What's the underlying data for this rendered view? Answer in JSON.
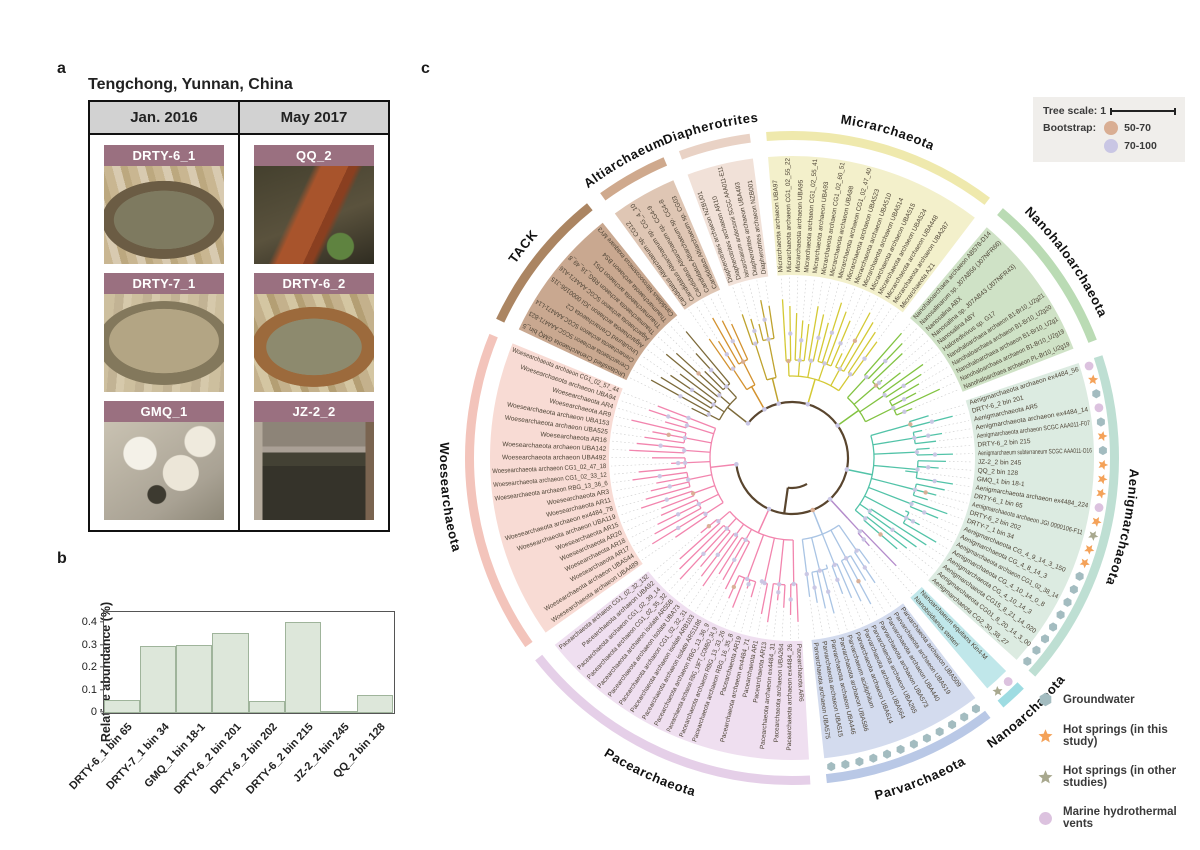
{
  "panel_a": {
    "label": "a",
    "title": "Tengchong, Yunnan, China",
    "columns": [
      "Jan. 2016",
      "May 2017"
    ],
    "banner_color": "#9a7080",
    "cells": [
      {
        "name": "DRTY-6_1",
        "photo": "p-drty61",
        "col": 0
      },
      {
        "name": "DRTY-7_1",
        "photo": "p-drty71",
        "col": 0
      },
      {
        "name": "GMQ_1",
        "photo": "p-gmq1",
        "col": 0
      },
      {
        "name": "QQ_2",
        "photo": "p-qq2",
        "col": 1
      },
      {
        "name": "DRTY-6_2",
        "photo": "p-drty62",
        "col": 1
      },
      {
        "name": "JZ-2_2",
        "photo": "p-jz22",
        "col": 1
      }
    ]
  },
  "panel_b": {
    "label": "b"
  },
  "chart_data": {
    "type": "bar",
    "title": "",
    "xlabel": "",
    "ylabel": "Relative abundance (%)",
    "categories": [
      "DRTY-6_1 bin 65",
      "DRTY-7_1 bin 34",
      "GMQ_1 bin 18-1",
      "DRTY-6_2 bin 201",
      "DRTY-6_2 bin 202",
      "DRTY-6_2 bin 215",
      "JZ-2_2 bin 245",
      "QQ_2 bin 128"
    ],
    "values": [
      0.06,
      0.297,
      0.302,
      0.355,
      0.053,
      0.403,
      0.006,
      0.082
    ],
    "yticks": [
      0,
      0.1,
      0.2,
      0.3,
      0.4
    ],
    "ylim": [
      0,
      0.45
    ],
    "grid": false,
    "legend_position": "none",
    "bar_fill": "#dde7da",
    "bar_border": "#9fb49b"
  },
  "panel_c": {
    "label": "c",
    "scale_legend": {
      "scale_label": "Tree scale: 1",
      "bootstrap_label": "Bootstrap:",
      "items": [
        {
          "label": "50-70",
          "color": "#d9ae93"
        },
        {
          "label": "70-100",
          "color": "#c9c6e4"
        }
      ]
    },
    "site_legend": [
      {
        "label": "Groundwater",
        "shape": "hex",
        "color": "#a3bcc0"
      },
      {
        "label": "Hot springs (in this study)",
        "shape": "star",
        "color": "#f4a259"
      },
      {
        "label": "Hot springs (in other studies)",
        "shape": "star",
        "color": "#a8a88e"
      },
      {
        "label": "Marine hydrothermal vents",
        "shape": "circle",
        "color": "#dcc2df"
      }
    ],
    "marker_colors": {
      "hex": "#a3bcc0",
      "star": "#f4a259",
      "graystar": "#a8a88e",
      "circle": "#dcc2df"
    },
    "bootstrap_dot_colors": {
      "low": "#d9ae93",
      "high": "#c9c6e4"
    },
    "tree": {
      "backbone_color": "#59452e",
      "clades": [
        {
          "name": "TACK",
          "band": "#c9a890",
          "arc": "#ab8562",
          "branch": "#7c6a3a",
          "leaves": [
            {
              "n": "Unclassified Crenarchaeota GMQ bin_5"
            },
            {
              "n": "Crenarchaeota archaeon SCGC AAA471-B23"
            },
            {
              "n": "Crenarchaeota archaeon SCGC AAA471-L14"
            },
            {
              "n": "Uncultured Crenarchaeota C2"
            },
            {
              "n": "Aigarchaeota archaeon JGI 0000106-J15"
            },
            {
              "n": "Aigarchaeota archaeon SCGC AAA471-A16"
            },
            {
              "n": "Thaumarchaeota archaeon RBG_16_49_8"
            },
            {
              "n": "Thaumarchaeota archaeon DS1"
            },
            {
              "n": "Thaumarchaeota archaeon BS4"
            },
            {
              "n": "Candidatus Nitrosocosmicus exaquare MY3"
            }
          ]
        },
        {
          "name": "Altiarchaeum",
          "band": "#dfc6b4",
          "arc": "#cfa98d",
          "branch": "#d3922f",
          "leaves": [
            {
              "n": "Candidatus Altiarchaeum sp. CG12"
            },
            {
              "n": "Candidatus Altiarchaeum sp. CG_4_10"
            },
            {
              "n": "Candidatus Altiarchaeum sp. CG4-9"
            },
            {
              "n": "Candidatus Altiarchaeum sp. CG4-8"
            },
            {
              "n": "Candidatus Altiarchaeum sp. CG03"
            }
          ]
        },
        {
          "name": "Diapherotrites",
          "band": "#f1e1d8",
          "arc": "#e9d2c5",
          "branch": "#bfa32e",
          "leaves": [
            {
              "n": "Diapherotrites archaeon NZBU01"
            },
            {
              "n": "Diapherotrites archaeon AR10"
            },
            {
              "n": "Iainarchaeum andersonii SCGC AAA011-E11"
            },
            {
              "n": "Diapherotrites archaeon UBA493"
            },
            {
              "n": "Diapherotrites archaeon NZB001"
            }
          ]
        },
        {
          "name": "Micrarchaeota",
          "band": "#f3f0cb",
          "arc": "#efe9ad",
          "branch": "#d4c934",
          "leaves": [
            {
              "n": "Micrarchaeota archaeon UBA97"
            },
            {
              "n": "Micrarchaeota archaeon CG1_02_55_22"
            },
            {
              "n": "Micrarchaeota archaeon UBA95"
            },
            {
              "n": "Micrarchaeota archaeon CG1_02_55_41"
            },
            {
              "n": "Micrarchaeota archaeon UBA93"
            },
            {
              "n": "Micrarchaeota archaeon CG1_02_60_51"
            },
            {
              "n": "Micrarchaeota archaeon UBA98"
            },
            {
              "n": "Micrarchaeota archaeon CG1_02_47_40"
            },
            {
              "n": "Micrarchaeota archaeon UBA523"
            },
            {
              "n": "Micrarchaeota archaeon UBA510"
            },
            {
              "n": "Micrarchaeota archaeon UBA514"
            },
            {
              "n": "Micrarchaeota archaeon UBA515"
            },
            {
              "n": "Micrarchaeota archaeon UBA524"
            },
            {
              "n": "Micrarchaeota archaeon UBA448"
            },
            {
              "n": "Micrarchaeota archaeon UBA287"
            },
            {
              "n": "Micrarchaeota AZ1"
            }
          ]
        },
        {
          "name": "Nanohaloarchaeota",
          "band": "#cfe2c6",
          "arc": "#badbb4",
          "branch": "#82c341",
          "leaves": [
            {
              "n": "Nanohaloarchaea archaeon AB578-D14"
            },
            {
              "n": "Nanosalinarum sp. J07AB56 (J07NFR66)"
            },
            {
              "n": "Nanosalina ABX"
            },
            {
              "n": "Nanosalina sp. J07AB43 (J07NFR43)"
            },
            {
              "n": "Nanosalina ABY"
            },
            {
              "n": "Haloredivivus sp. G17"
            },
            {
              "n": "Nanohaloarchaea archaeon B1-Br10_U2g21"
            },
            {
              "n": "Nanohaloarchaea archaeon B1-Br10_U2g20"
            },
            {
              "n": "Nanohaloarchaea archaeon B1-Br10_U2g1"
            },
            {
              "n": "Nanohaloarchaea archaeon B1-Br10_U2g19"
            },
            {
              "n": "Nanohaloarchaea archaeon PL-Br10_U2g19"
            }
          ]
        },
        {
          "name": "Aenigmarchaeota",
          "band": "#dcebe1",
          "arc": "#bedfd3",
          "branch": "#52c3a8",
          "leaves": [
            {
              "n": "Aenigmarchaeota archaeon ex4484_56",
              "m": "circle"
            },
            {
              "n": "DRTY-6_2 bin 201",
              "m": "star"
            },
            {
              "n": "Aenigmarchaeota AR5",
              "m": "hex"
            },
            {
              "n": "Aenigmarchaeota archaeon ex4484_14",
              "m": "circle"
            },
            {
              "n": "Aenigmarchaeota archaeon SCGC AAA011-F07",
              "m": "hex"
            },
            {
              "n": "DRTY-6_2 bin 215",
              "m": "star"
            },
            {
              "n": "Aenigmarchaeum subterraneum SCGC AAA011-O16",
              "m": "hex"
            },
            {
              "n": "JZ-2_2 bin 245",
              "m": "star"
            },
            {
              "n": "QQ_2 bin 128",
              "m": "star"
            },
            {
              "n": "GMQ_1 bin 18-1",
              "m": "star"
            },
            {
              "n": "Aenigmarchaeota archaeon ex4484_224",
              "m": "circle"
            },
            {
              "n": "DRTY-6_1 bin 65",
              "m": "star"
            },
            {
              "n": "Aenigmarchaeota archaeon JGI 0000106-F11",
              "m": "graystar"
            },
            {
              "n": "DRTY-6_2 bin 202",
              "m": "star"
            },
            {
              "n": "DRTY-7_1 bin 34",
              "m": "star"
            },
            {
              "n": "Aenigmarchaeota CG_4_9_14_3_150",
              "m": "hex"
            },
            {
              "n": "Aenigmarchaeota CG_4_8_14_3",
              "m": "hex"
            },
            {
              "n": "Aenigmarchaeota archaeon CG1_02_38_14",
              "m": "hex"
            },
            {
              "n": "Aenigmarchaeota CG_4_10_14_0_8",
              "m": "hex"
            },
            {
              "n": "Aenigmarchaeota CG_4_10_14_3",
              "m": "hex"
            },
            {
              "n": "Aenigmarchaeota CG15_8_21_14_020",
              "m": "hex"
            },
            {
              "n": "Aenigmarchaeota CG01_8_20_14_3_00",
              "m": "hex"
            },
            {
              "n": "Aenigmarchaeota CG2_30_38_27",
              "m": "hex"
            }
          ]
        },
        {
          "name": "Nanoarchaeota",
          "band": "#c0e7ea",
          "arc": "#9edce2",
          "branch": "#b48ccb",
          "leaves": [
            {
              "n": "Nanoarchaeum equitans Kin4-M",
              "m": "circle"
            },
            {
              "n": "Nanobsidianus stetteri",
              "m": "graystar"
            }
          ]
        },
        {
          "name": "Parvarchaeota",
          "band": "#d3dbee",
          "arc": "#b9c8e6",
          "branch": "#a9c4e4",
          "leaves": [
            {
              "n": "Parvarchaeota archaeon UBA509",
              "m": "hex"
            },
            {
              "n": "Parvarchaeota archaeon UBA519",
              "m": "hex"
            },
            {
              "n": "Parvarchaeota archaeon UBA440",
              "m": "hex"
            },
            {
              "n": "Parvarchaeota archaeon UBA573",
              "m": "hex"
            },
            {
              "n": "Parvarchaeota archaeon UBA265",
              "m": "hex"
            },
            {
              "n": "Parvarchaeota archaeon UBA564",
              "m": "hex"
            },
            {
              "n": "Parvarchaeota archaeon UBA614",
              "m": "hex"
            },
            {
              "n": "Parvarchaeum acidiphilum",
              "m": "hex"
            },
            {
              "n": "Parvarchaeota archaeon UBA586",
              "m": "hex"
            },
            {
              "n": "Parvarchaeota archaeon UBA446",
              "m": "hex"
            },
            {
              "n": "Parvarchaeota archaeon UBA515",
              "m": "hex"
            },
            {
              "n": "Parvarchaeota archaeon UBA575",
              "m": "hex"
            }
          ]
        },
        {
          "name": "Pacearchaeota",
          "band": "#efdff0",
          "arc": "#e5cfe8",
          "branch": "#f285ae",
          "leaves": [
            {
              "n": "Pacearchaeota AR6"
            },
            {
              "n": "Pacearchaeota archaeon ex4484_26"
            },
            {
              "n": "Pacearchaeota archaeon UBA264"
            },
            {
              "n": "Pacearchaeota archaeon ex4484_31"
            },
            {
              "n": "Pacearchaeota AR13"
            },
            {
              "n": "Pacearchaeota AR1"
            },
            {
              "n": "Pacearchaeota archaeon ex4484_71"
            },
            {
              "n": "Pacearchaeota AR19"
            },
            {
              "n": "Pacearchaeota archaeon RBG_16_35_8"
            },
            {
              "n": "Pacearchaeota archaeon RBG_13_33_26"
            },
            {
              "n": "Pacearchaeota archaeon RBG_19FT_COMBO_34_9"
            },
            {
              "n": "Pacearchaeota archaeon RBG_13_36_9"
            },
            {
              "n": "Pacearchaeota archaeon isolate ARS1186"
            },
            {
              "n": "Pacearchaeota archaeon isolate ARB103"
            },
            {
              "n": "Pacearchaeota archaeon CG1_02_32_31"
            },
            {
              "n": "Pacearchaeota archaeon isolate UBA73"
            },
            {
              "n": "Pacearchaeota archaeon isolate AR55B"
            },
            {
              "n": "Pacearchaeota archaeon CG1_02_35_32"
            },
            {
              "n": "Pacearchaeota archaeon CG1_02_39_14"
            },
            {
              "n": "Pacearchaeota archaeon UBA92"
            },
            {
              "n": "Pacearchaeota archaeon CG1_02_32_132"
            }
          ]
        },
        {
          "name": "Woesearchaeota",
          "band": "#f8dbd4",
          "arc": "#f3c4bb",
          "branch": "#f285ae",
          "leaves": [
            {
              "n": "Woesearchaeota archaeon UBA489"
            },
            {
              "n": "Woesearchaeota archaeon UBA544"
            },
            {
              "n": "Woesearchaeota AR17"
            },
            {
              "n": "Woesearchaeota AR18"
            },
            {
              "n": "Woesearchaeota AR20"
            },
            {
              "n": "Woesearchaeota AR15"
            },
            {
              "n": "Woesearchaeota archaeon UBA119"
            },
            {
              "n": "Woesearchaeota archaeon ex4484_78"
            },
            {
              "n": "Woesearchaeota AR11"
            },
            {
              "n": "Woesearchaeota AR3"
            },
            {
              "n": "Woesearchaeota archaeon RBG_13_36_6"
            },
            {
              "n": "Woesearchaeota archaeon CG1_02_33_12"
            },
            {
              "n": "Woesearchaeota archaeon CG1_02_47_18"
            },
            {
              "n": "Woesearchaeota archaeon UBA492"
            },
            {
              "n": "Woesearchaeota archaeon UBA142"
            },
            {
              "n": "Woesearchaeota AR16"
            },
            {
              "n": "Woesearchaeota archaeon UBA525"
            },
            {
              "n": "Woesearchaeota archaeon UBA153"
            },
            {
              "n": "Woesearchaeota AR9"
            },
            {
              "n": "Woesearchaeota AR4"
            },
            {
              "n": "Woesearchaeota archaeon UBA94"
            },
            {
              "n": "Woesearchaeota archaeon CG1_02_57_44"
            }
          ]
        }
      ]
    }
  }
}
